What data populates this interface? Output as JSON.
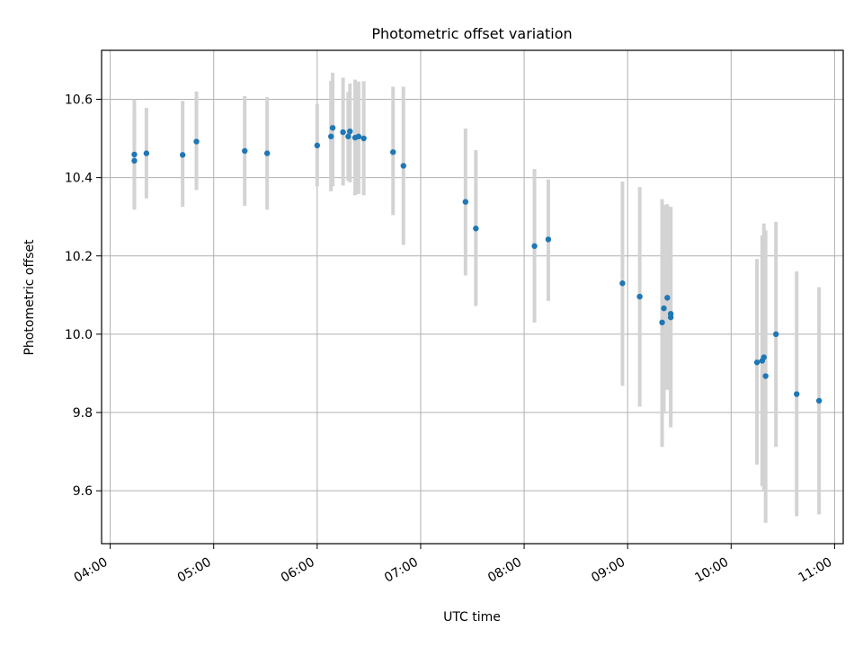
{
  "chart_data": {
    "type": "scatter",
    "title": "Photometric offset variation",
    "xlabel": "UTC time",
    "ylabel": "Photometric offset",
    "x_domain": [
      "03:55",
      "11:05"
    ],
    "y_domain": [
      9.465,
      10.725
    ],
    "x_ticks": [
      "04:00",
      "05:00",
      "06:00",
      "07:00",
      "08:00",
      "09:00",
      "10:00",
      "11:00"
    ],
    "y_ticks": [
      9.6,
      9.8,
      10.0,
      10.2,
      10.4,
      10.6
    ],
    "y_tick_labels": [
      "9.6",
      "9.8",
      "10.0",
      "10.2",
      "10.4",
      "10.6"
    ],
    "grid": true,
    "legend": "none",
    "colors": {
      "points": "#1f77b4",
      "error_bars": "#d3d3d3",
      "grid": "#b0b0b0",
      "axes": "#000000"
    },
    "series": [
      {
        "points": [
          {
            "x": "04:14",
            "y": 10.443,
            "yerr_low": 10.322,
            "yerr_high": 10.564
          },
          {
            "x": "04:14",
            "y": 10.459,
            "yerr_low": 10.318,
            "yerr_high": 10.6
          },
          {
            "x": "04:21",
            "y": 10.462,
            "yerr_low": 10.347,
            "yerr_high": 10.578
          },
          {
            "x": "04:42",
            "y": 10.458,
            "yerr_low": 10.325,
            "yerr_high": 10.596
          },
          {
            "x": "04:50",
            "y": 10.492,
            "yerr_low": 10.368,
            "yerr_high": 10.62
          },
          {
            "x": "05:18",
            "y": 10.468,
            "yerr_low": 10.328,
            "yerr_high": 10.608
          },
          {
            "x": "05:31",
            "y": 10.462,
            "yerr_low": 10.318,
            "yerr_high": 10.605
          },
          {
            "x": "06:00",
            "y": 10.482,
            "yerr_low": 10.378,
            "yerr_high": 10.588
          },
          {
            "x": "06:08",
            "y": 10.505,
            "yerr_low": 10.365,
            "yerr_high": 10.647
          },
          {
            "x": "06:09",
            "y": 10.527,
            "yerr_low": 10.378,
            "yerr_high": 10.668
          },
          {
            "x": "06:15",
            "y": 10.516,
            "yerr_low": 10.38,
            "yerr_high": 10.655
          },
          {
            "x": "06:18",
            "y": 10.505,
            "yerr_low": 10.392,
            "yerr_high": 10.618
          },
          {
            "x": "06:19",
            "y": 10.518,
            "yerr_low": 10.388,
            "yerr_high": 10.64
          },
          {
            "x": "06:22",
            "y": 10.502,
            "yerr_low": 10.355,
            "yerr_high": 10.65
          },
          {
            "x": "06:24",
            "y": 10.505,
            "yerr_low": 10.358,
            "yerr_high": 10.645
          },
          {
            "x": "06:27",
            "y": 10.5,
            "yerr_low": 10.355,
            "yerr_high": 10.646
          },
          {
            "x": "06:44",
            "y": 10.465,
            "yerr_low": 10.304,
            "yerr_high": 10.632
          },
          {
            "x": "06:50",
            "y": 10.43,
            "yerr_low": 10.228,
            "yerr_high": 10.632
          },
          {
            "x": "07:26",
            "y": 10.338,
            "yerr_low": 10.15,
            "yerr_high": 10.525
          },
          {
            "x": "07:32",
            "y": 10.27,
            "yerr_low": 10.072,
            "yerr_high": 10.47
          },
          {
            "x": "08:06",
            "y": 10.225,
            "yerr_low": 10.03,
            "yerr_high": 10.422
          },
          {
            "x": "08:14",
            "y": 10.242,
            "yerr_low": 10.085,
            "yerr_high": 10.395
          },
          {
            "x": "08:57",
            "y": 10.13,
            "yerr_low": 9.868,
            "yerr_high": 10.39
          },
          {
            "x": "09:07",
            "y": 10.096,
            "yerr_low": 9.815,
            "yerr_high": 10.376
          },
          {
            "x": "09:20",
            "y": 10.03,
            "yerr_low": 9.712,
            "yerr_high": 10.345
          },
          {
            "x": "09:21",
            "y": 10.066,
            "yerr_low": 9.8,
            "yerr_high": 10.33
          },
          {
            "x": "09:23",
            "y": 10.093,
            "yerr_low": 9.858,
            "yerr_high": 10.332
          },
          {
            "x": "09:25",
            "y": 10.052,
            "yerr_low": 9.775,
            "yerr_high": 10.325
          },
          {
            "x": "09:25",
            "y": 10.043,
            "yerr_low": 9.762,
            "yerr_high": 10.325
          },
          {
            "x": "10:15",
            "y": 9.928,
            "yerr_low": 9.667,
            "yerr_high": 10.192
          },
          {
            "x": "10:18",
            "y": 9.932,
            "yerr_low": 9.612,
            "yerr_high": 10.252
          },
          {
            "x": "10:19",
            "y": 9.941,
            "yerr_low": 9.602,
            "yerr_high": 10.283
          },
          {
            "x": "10:20",
            "y": 9.893,
            "yerr_low": 9.518,
            "yerr_high": 10.265
          },
          {
            "x": "10:26",
            "y": 10.0,
            "yerr_low": 9.712,
            "yerr_high": 10.287
          },
          {
            "x": "10:38",
            "y": 9.847,
            "yerr_low": 9.535,
            "yerr_high": 10.16
          },
          {
            "x": "10:51",
            "y": 9.83,
            "yerr_low": 9.54,
            "yerr_high": 10.12
          }
        ]
      }
    ]
  }
}
